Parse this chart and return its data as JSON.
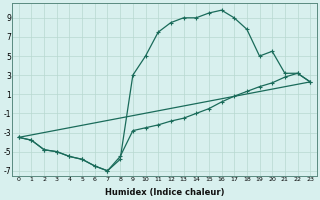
{
  "xlabel": "Humidex (Indice chaleur)",
  "background_color": "#d8f0ee",
  "grid_color": "#b8d8d0",
  "line_color": "#1a6b5a",
  "xlim": [
    -0.5,
    23.5
  ],
  "ylim": [
    -7.5,
    10.5
  ],
  "xticks": [
    0,
    1,
    2,
    3,
    4,
    5,
    6,
    7,
    8,
    9,
    10,
    11,
    12,
    13,
    14,
    15,
    16,
    17,
    18,
    19,
    20,
    21,
    22,
    23
  ],
  "yticks": [
    -7,
    -5,
    -3,
    -1,
    1,
    3,
    5,
    7,
    9
  ],
  "series1_x": [
    0,
    1,
    2,
    3,
    4,
    5,
    6,
    7,
    8,
    9,
    10,
    11,
    12,
    13,
    14,
    15,
    16,
    17,
    18,
    19,
    20,
    21,
    22,
    23
  ],
  "series1_y": [
    -3.5,
    -3.8,
    -4.8,
    -5.0,
    -5.5,
    -5.8,
    -6.5,
    -7.0,
    -5.8,
    3.0,
    5.0,
    7.5,
    8.5,
    9.0,
    9.0,
    9.5,
    9.8,
    9.0,
    7.8,
    5.0,
    5.5,
    3.2,
    3.2,
    2.3
  ],
  "series2_x": [
    0,
    1,
    2,
    3,
    4,
    5,
    6,
    7,
    8,
    9,
    10,
    11,
    12,
    13,
    14,
    15,
    16,
    17,
    18,
    19,
    20,
    21,
    22,
    23
  ],
  "series2_y": [
    -3.5,
    -3.8,
    -4.8,
    -5.0,
    -5.5,
    -5.8,
    -6.5,
    -7.0,
    -5.5,
    -2.8,
    -2.5,
    -2.2,
    -1.8,
    -1.5,
    -1.0,
    -0.5,
    0.2,
    0.8,
    1.3,
    1.8,
    2.2,
    2.8,
    3.2,
    2.3
  ],
  "series3_x": [
    0,
    23
  ],
  "series3_y": [
    -3.5,
    2.3
  ]
}
